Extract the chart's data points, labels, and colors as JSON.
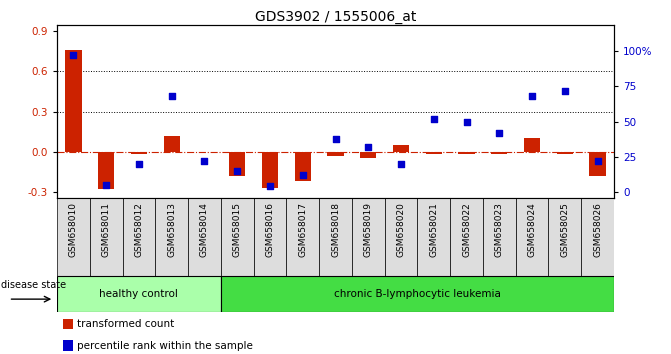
{
  "title": "GDS3902 / 1555006_at",
  "samples": [
    "GSM658010",
    "GSM658011",
    "GSM658012",
    "GSM658013",
    "GSM658014",
    "GSM658015",
    "GSM658016",
    "GSM658017",
    "GSM658018",
    "GSM658019",
    "GSM658020",
    "GSM658021",
    "GSM658022",
    "GSM658023",
    "GSM658024",
    "GSM658025",
    "GSM658026"
  ],
  "transformed_count": [
    0.76,
    -0.28,
    -0.02,
    0.12,
    -0.005,
    -0.18,
    -0.27,
    -0.22,
    -0.03,
    -0.05,
    0.05,
    -0.02,
    -0.02,
    -0.02,
    0.1,
    -0.015,
    -0.18
  ],
  "percentile_rank": [
    97,
    5,
    20,
    68,
    22,
    15,
    4,
    12,
    38,
    32,
    20,
    52,
    50,
    42,
    68,
    72,
    22
  ],
  "group_labels": [
    "healthy control",
    "chronic B-lymphocytic leukemia"
  ],
  "n_healthy": 5,
  "n_leukemia": 12,
  "group_color_healthy": "#aaffaa",
  "group_color_leukemia": "#44dd44",
  "bar_color": "#cc2200",
  "dot_color": "#0000cc",
  "zero_line_color": "#cc2200",
  "grid_line_color": "#000000",
  "ylim_left": [
    -0.35,
    0.95
  ],
  "ylim_right": [
    -4.375,
    118.75
  ],
  "yticks_left": [
    -0.3,
    0.0,
    0.3,
    0.6,
    0.9
  ],
  "yticks_right": [
    0,
    25,
    50,
    75,
    100
  ],
  "hlines": [
    0.3,
    0.6
  ],
  "background_color": "#ffffff",
  "label_fontsize": 6.5,
  "title_fontsize": 10,
  "tick_bg_color": "#dddddd"
}
